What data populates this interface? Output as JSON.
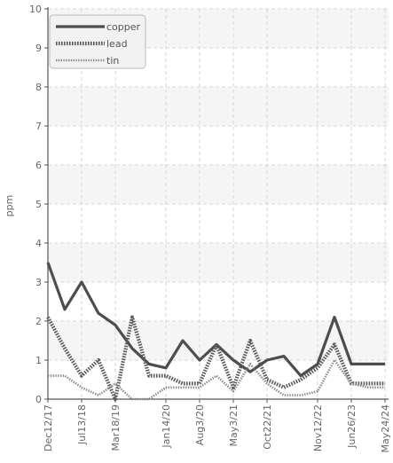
{
  "chart_data": {
    "type": "line",
    "title": "",
    "xlabel": "",
    "ylabel": "ppm",
    "ylim": [
      0,
      10
    ],
    "y_ticks": [
      0,
      1,
      2,
      3,
      4,
      5,
      6,
      7,
      8,
      9,
      10
    ],
    "grid": true,
    "legend_position": "top-left",
    "x_tick_labels": [
      "Dec12/17",
      "Jul13/18",
      "Mar18/19",
      "Jan14/20",
      "Aug3/20",
      "May3/21",
      "Oct22/21",
      "Nov12/22",
      "Jun26/23",
      "May24/24"
    ],
    "x": [
      "Dec12/17",
      "",
      "Jul13/18",
      "",
      "Mar18/19",
      "",
      "",
      "Jan14/20",
      "",
      "Aug3/20",
      "",
      "May3/21",
      "",
      "Oct22/21",
      "",
      "",
      "Nov12/22",
      "",
      "Jun26/23",
      "",
      "May24/24"
    ],
    "series": [
      {
        "name": "copper",
        "color": "#4d4d4d",
        "style": "solid",
        "values": [
          3.5,
          2.3,
          3.0,
          2.2,
          1.9,
          1.3,
          0.9,
          0.8,
          1.5,
          1.0,
          1.4,
          1.0,
          0.7,
          1.0,
          1.1,
          0.6,
          0.9,
          2.1,
          0.9,
          0.9,
          0.9
        ]
      },
      {
        "name": "lead",
        "color": "#5a5a5a",
        "style": "dotted",
        "values": [
          2.1,
          1.3,
          0.6,
          1.0,
          0.0,
          2.1,
          0.6,
          0.6,
          0.4,
          0.4,
          1.4,
          0.3,
          1.5,
          0.5,
          0.3,
          0.5,
          0.8,
          1.4,
          0.4,
          0.4,
          0.4
        ]
      },
      {
        "name": "tin",
        "color": "#8a8a8a",
        "style": "dotted-light",
        "values": [
          0.6,
          0.6,
          0.3,
          0.1,
          0.4,
          0.0,
          0.0,
          0.3,
          0.3,
          0.3,
          0.6,
          0.2,
          0.9,
          0.4,
          0.1,
          0.1,
          0.2,
          1.0,
          0.4,
          0.3,
          0.3
        ]
      }
    ]
  },
  "colors": {
    "background": "#ffffff",
    "band": "#f5f5f5",
    "grid": "#d6d6d6",
    "axis": "#555555",
    "legend_bg": "#f2f2f2",
    "legend_border": "#bbbbbb"
  }
}
